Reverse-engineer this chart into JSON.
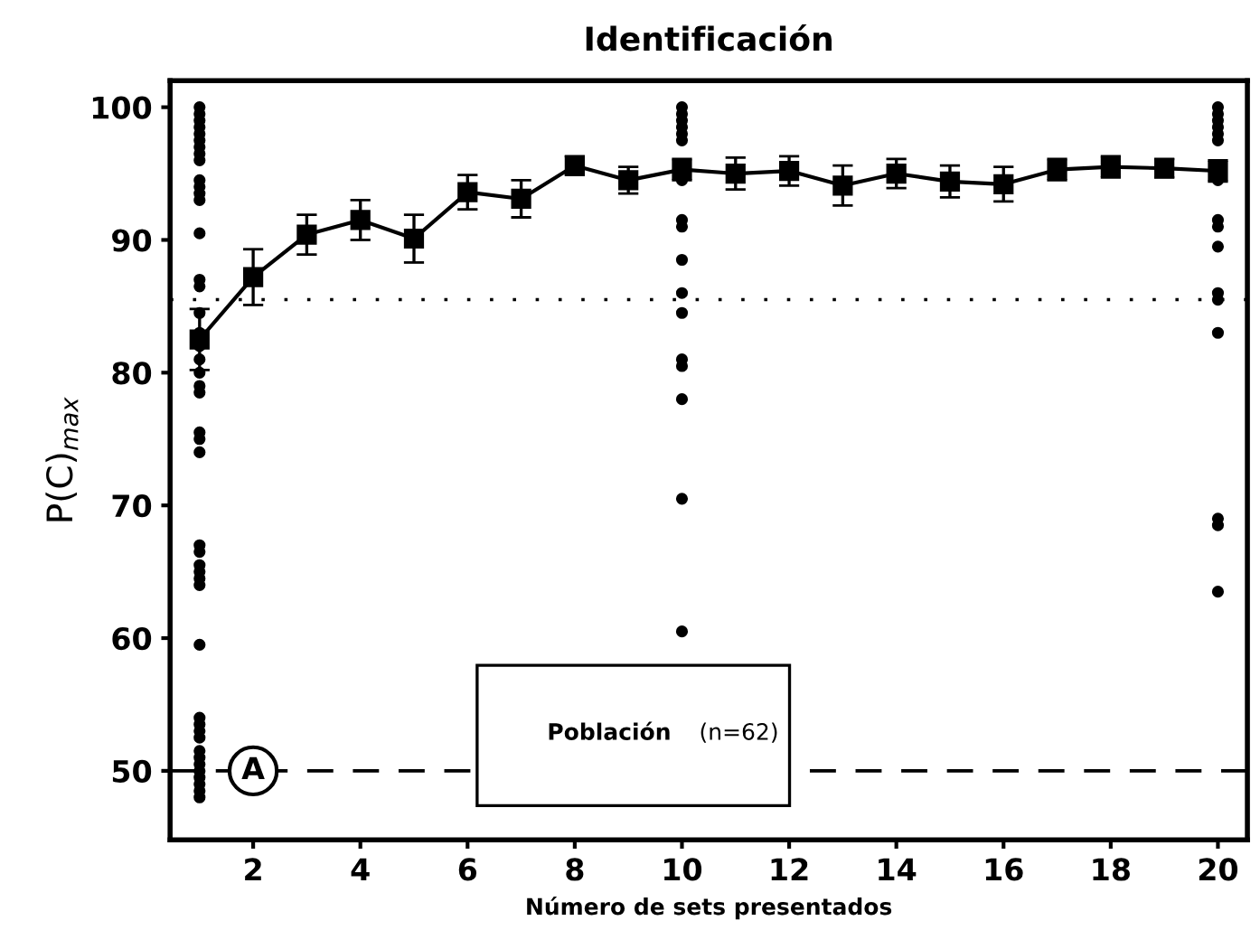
{
  "chart_data": {
    "type": "line",
    "title": "Identificación",
    "xlabel": "Número de sets presentados",
    "ylabel": "P(C)$_{max}$",
    "xlim": [
      0.45,
      20.55
    ],
    "ylim": [
      44.8,
      102
    ],
    "xticks": [
      2,
      4,
      6,
      8,
      10,
      12,
      14,
      16,
      18,
      20
    ],
    "yticks": [
      50,
      60,
      70,
      80,
      90,
      100
    ],
    "grid": false,
    "series": [
      {
        "type": "scatter",
        "color": "#000000",
        "marker": "circle",
        "x": [
          1,
          1,
          1,
          1,
          1,
          1,
          1,
          1,
          1,
          1,
          1,
          1,
          1,
          1,
          1,
          1,
          1,
          1,
          1,
          1,
          1,
          1,
          1,
          1,
          1,
          1,
          1,
          1,
          1,
          1,
          1,
          1,
          1,
          1,
          1,
          1,
          1,
          1,
          1,
          1,
          1,
          1,
          1,
          1,
          1,
          10,
          10,
          10,
          10,
          10,
          10,
          10,
          10,
          10,
          10,
          10,
          10,
          10,
          10,
          10,
          10,
          10,
          20,
          20,
          20,
          20,
          20,
          20,
          20,
          20,
          20,
          20,
          20,
          20,
          20,
          20,
          20,
          20
        ],
        "values": [
          100,
          99.5,
          99,
          98.5,
          98,
          97.5,
          97,
          96.5,
          96,
          94.5,
          94,
          93.5,
          93,
          90.5,
          87,
          86.5,
          84.5,
          83,
          82,
          81,
          80,
          79,
          78.5,
          75.5,
          75,
          74,
          67,
          66.5,
          65.5,
          65,
          64.5,
          64,
          59.5,
          54,
          53.5,
          53,
          52.5,
          51.5,
          51,
          50.5,
          50,
          49.5,
          49,
          48.5,
          48,
          100,
          99.5,
          99,
          98.5,
          98,
          97.5,
          94.5,
          91.5,
          91,
          88.5,
          86,
          84.5,
          81,
          80.5,
          78,
          70.5,
          60.5,
          100,
          99.5,
          99,
          98.5,
          98,
          97.5,
          94.5,
          91.5,
          91,
          89.5,
          86,
          85.5,
          83,
          69,
          68.5,
          63.5
        ]
      },
      {
        "color": "#000000",
        "marker": "square",
        "line_style": "solid",
        "x": [
          1,
          2,
          3,
          4,
          5,
          6,
          7,
          8,
          9,
          10,
          11,
          12,
          13,
          14,
          15,
          16,
          17,
          18,
          19,
          20
        ],
        "values": [
          82.5,
          87.2,
          90.4,
          91.5,
          90.1,
          93.6,
          93.1,
          95.6,
          94.5,
          95.3,
          95,
          95.2,
          94.1,
          95,
          94.4,
          94.2,
          95.3,
          95.5,
          95.4,
          95.2
        ],
        "errors": [
          2.3,
          2.1,
          1.5,
          1.5,
          1.8,
          1.3,
          1.4,
          0.7,
          1,
          0.8,
          1.2,
          1.1,
          1.5,
          1.1,
          1.2,
          1.3,
          0.8,
          0.8,
          0.7,
          0.8
        ]
      }
    ],
    "ref_lines": [
      {
        "axis": "y",
        "value": 85.5,
        "line_style": "dotted",
        "color": "#000000"
      },
      {
        "axis": "y",
        "value": 50,
        "line_style": "dashed",
        "color": "#000000"
      }
    ],
    "annotations": [
      {
        "text": "A",
        "x": 2,
        "y": 50
      },
      "Población",
      "(n=62)"
    ]
  }
}
